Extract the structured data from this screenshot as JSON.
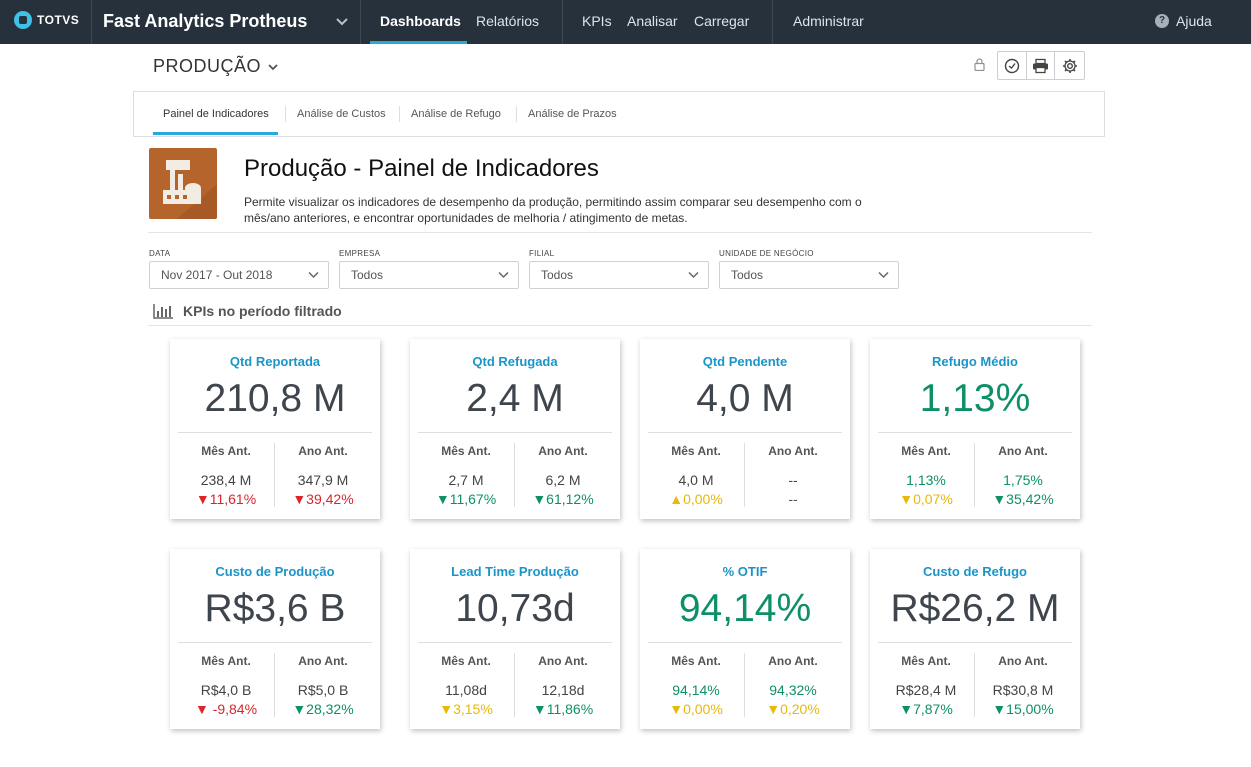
{
  "topbar": {
    "logo_text": "TOTVS",
    "app_title": "Fast Analytics Protheus",
    "nav": [
      "Dashboards",
      "Relatórios",
      "KPIs",
      "Analisar",
      "Carregar",
      "Administrar"
    ],
    "help": "Ajuda"
  },
  "dashboard": {
    "title": "PRODUÇÃO",
    "tabs": [
      "Painel de Indicadores",
      "Análise de Custos",
      "Análise de Refugo",
      "Análise de Prazos"
    ]
  },
  "intro": {
    "title": "Produção - Painel de Indicadores",
    "description": "Permite visualizar os indicadores de desempenho da produção, permitindo assim comparar seu desempenho com o mês/ano anteriores, e encontrar oportunidades de melhoria / atingimento de metas."
  },
  "filters": [
    {
      "label": "DATA",
      "value": "Nov 2017 - Out 2018"
    },
    {
      "label": "EMPRESA",
      "value": "Todos"
    },
    {
      "label": "FILIAL",
      "value": "Todos"
    },
    {
      "label": "UNIDADE DE NEGÓCIO",
      "value": "Todos"
    }
  ],
  "kpi_section": {
    "heading": "KPIs no período filtrado"
  },
  "colors": {
    "accent": "#29a9d9",
    "green": "#0d9068",
    "red": "#d9262b",
    "yellow": "#e8b80b",
    "topbar": "#26313c"
  },
  "kpis": [
    {
      "title": "Qtd Reportada",
      "value": "210,8 M",
      "value_color": "default",
      "prev_month": {
        "label": "Mês Ant.",
        "value": "238,4 M",
        "delta": "▼11,61%",
        "delta_color": "red",
        "value_color": "default"
      },
      "prev_year": {
        "label": "Ano Ant.",
        "value": "347,9 M",
        "delta": "▼39,42%",
        "delta_color": "red",
        "value_color": "default"
      }
    },
    {
      "title": "Qtd Refugada",
      "value": "2,4 M",
      "value_color": "default",
      "prev_month": {
        "label": "Mês Ant.",
        "value": "2,7 M",
        "delta": "▼11,67%",
        "delta_color": "green",
        "value_color": "default"
      },
      "prev_year": {
        "label": "Ano Ant.",
        "value": "6,2 M",
        "delta": "▼61,12%",
        "delta_color": "green",
        "value_color": "default"
      }
    },
    {
      "title": "Qtd Pendente",
      "value": "4,0 M",
      "value_color": "default",
      "prev_month": {
        "label": "Mês Ant.",
        "value": "4,0 M",
        "delta": "▲0,00%",
        "delta_color": "yellow",
        "value_color": "default"
      },
      "prev_year": {
        "label": "Ano Ant.",
        "value": "--",
        "delta": "--",
        "delta_color": "neutral",
        "value_color": "default"
      }
    },
    {
      "title": "Refugo Médio",
      "value": "1,13%",
      "value_color": "green",
      "prev_month": {
        "label": "Mês Ant.",
        "value": "1,13%",
        "delta": "▼0,07%",
        "delta_color": "yellow",
        "value_color": "green"
      },
      "prev_year": {
        "label": "Ano Ant.",
        "value": "1,75%",
        "delta": "▼35,42%",
        "delta_color": "green",
        "value_color": "green"
      }
    },
    {
      "title": "Custo de Produção",
      "value": "R$3,6 B",
      "value_color": "default",
      "prev_month": {
        "label": "Mês Ant.",
        "value": "R$4,0 B",
        "delta": "▼ -9,84%",
        "delta_color": "red",
        "value_color": "default"
      },
      "prev_year": {
        "label": "Ano Ant.",
        "value": "R$5,0 B",
        "delta": "▼28,32%",
        "delta_color": "green",
        "value_color": "default"
      }
    },
    {
      "title": "Lead Time Produção",
      "value": "10,73d",
      "value_color": "default",
      "prev_month": {
        "label": "Mês Ant.",
        "value": "11,08d",
        "delta": "▼3,15%",
        "delta_color": "yellow",
        "value_color": "default"
      },
      "prev_year": {
        "label": "Ano Ant.",
        "value": "12,18d",
        "delta": "▼11,86%",
        "delta_color": "green",
        "value_color": "default"
      }
    },
    {
      "title": "% OTIF",
      "value": "94,14%",
      "value_color": "green",
      "prev_month": {
        "label": "Mês Ant.",
        "value": "94,14%",
        "delta": "▼0,00%",
        "delta_color": "yellow",
        "value_color": "green"
      },
      "prev_year": {
        "label": "Ano Ant.",
        "value": "94,32%",
        "delta": "▼0,20%",
        "delta_color": "yellow",
        "value_color": "green"
      }
    },
    {
      "title": "Custo de Refugo",
      "value": "R$26,2 M",
      "value_color": "default",
      "prev_month": {
        "label": "Mês Ant.",
        "value": "R$28,4 M",
        "delta": "▼7,87%",
        "delta_color": "green",
        "value_color": "default"
      },
      "prev_year": {
        "label": "Ano Ant.",
        "value": "R$30,8 M",
        "delta": "▼15,00%",
        "delta_color": "green",
        "value_color": "default"
      }
    }
  ]
}
